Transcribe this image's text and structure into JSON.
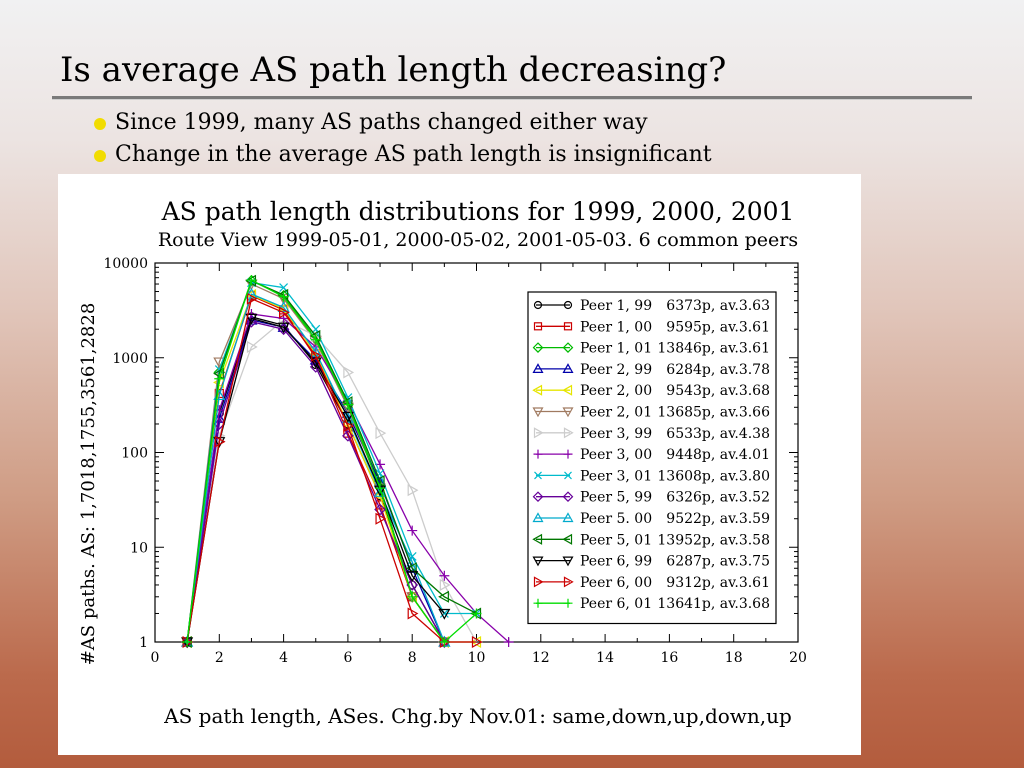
{
  "slide": {
    "title": "Is average AS path length decreasing?",
    "bullets": [
      "Since 1999, many AS paths changed either way",
      "Change in the average AS path length is insignificant"
    ],
    "bullet_color": "#f1dc00"
  },
  "chart_data": {
    "type": "line",
    "title": "AS path length distributions for 1999, 2000, 2001",
    "subtitle": "Route View 1999-05-01, 2000-05-02, 2001-05-03. 6 common peers",
    "xlabel": "AS path length, ASes. Chg.by Nov.01: same,down,up,down,up",
    "ylabel": "#AS paths. AS: 1,7018,1755,3561,2828",
    "xlim": [
      0,
      20
    ],
    "ylim": [
      1,
      10000
    ],
    "yscale": "log",
    "x_ticks": [
      0,
      2,
      4,
      6,
      8,
      10,
      12,
      14,
      16,
      18,
      20
    ],
    "y_ticks": [
      1,
      10,
      100,
      1000,
      10000
    ],
    "y_tick_labels": [
      "1",
      "10",
      "100",
      "1000",
      "10000"
    ],
    "legend_position": "right",
    "series": [
      {
        "name": "Peer 1, 99",
        "info": "6373p, av.3.63",
        "color": "#000000",
        "marker": "circle",
        "x": [
          1,
          2,
          3,
          4,
          5,
          6,
          7,
          8,
          9
        ],
        "y": [
          1,
          260,
          2700,
          2200,
          850,
          200,
          35,
          4,
          1
        ]
      },
      {
        "name": "Peer 1, 00",
        "info": "9595p, av.3.61",
        "color": "#cc0000",
        "marker": "square",
        "x": [
          1,
          2,
          3,
          4,
          5,
          6,
          7,
          8,
          9
        ],
        "y": [
          1,
          420,
          4500,
          3200,
          1000,
          160,
          28,
          3,
          1
        ]
      },
      {
        "name": "Peer 1, 01",
        "info": "13846p, av.3.61",
        "color": "#00bb00",
        "marker": "diamond",
        "x": [
          1,
          2,
          3,
          4,
          5,
          6,
          7,
          8,
          9
        ],
        "y": [
          1,
          700,
          6500,
          4500,
          1600,
          320,
          45,
          3,
          1
        ]
      },
      {
        "name": "Peer 2, 99",
        "info": "6284p, av.3.78",
        "color": "#0000aa",
        "marker": "triangle-up",
        "x": [
          1,
          2,
          3,
          4,
          5,
          6,
          7,
          8,
          9
        ],
        "y": [
          1,
          230,
          2500,
          2100,
          950,
          260,
          48,
          6,
          1
        ]
      },
      {
        "name": "Peer 2, 00",
        "info": "9543p, av.3.68",
        "color": "#e6e600",
        "marker": "triangle-left",
        "x": [
          1,
          2,
          3,
          4,
          5,
          6,
          7,
          8,
          9,
          10
        ],
        "y": [
          1,
          550,
          4600,
          3300,
          1100,
          200,
          35,
          3,
          1,
          1
        ]
      },
      {
        "name": "Peer 2, 01",
        "info": "13685p, av.3.66",
        "color": "#a07a60",
        "marker": "triangle-down",
        "x": [
          1,
          2,
          3,
          4,
          5,
          6,
          7,
          8,
          9
        ],
        "y": [
          1,
          900,
          6000,
          4200,
          1500,
          300,
          42,
          3,
          1
        ]
      },
      {
        "name": "Peer 3, 99",
        "info": "6533p, av.4.38",
        "color": "#cccccc",
        "marker": "triangle-right",
        "x": [
          1,
          2,
          3,
          4,
          5,
          6,
          7,
          8,
          9,
          10
        ],
        "y": [
          1,
          150,
          1300,
          2500,
          1700,
          700,
          160,
          40,
          4,
          1
        ]
      },
      {
        "name": "Peer 3, 00",
        "info": "9448p, av.4.01",
        "color": "#8800aa",
        "marker": "plus",
        "x": [
          1,
          2,
          3,
          4,
          5,
          6,
          7,
          8,
          9,
          10,
          11
        ],
        "y": [
          1,
          280,
          2900,
          2600,
          1300,
          350,
          75,
          15,
          5,
          2,
          1
        ]
      },
      {
        "name": "Peer 3, 01",
        "info": "13608p, av.3.80",
        "color": "#00bbcc",
        "marker": "cross",
        "x": [
          1,
          2,
          3,
          4,
          5,
          6,
          7,
          8,
          9,
          10
        ],
        "y": [
          1,
          750,
          6200,
          5500,
          2000,
          380,
          60,
          8,
          2,
          2
        ]
      },
      {
        "name": "Peer 5, 99",
        "info": "6326p, av.3.52",
        "color": "#660099",
        "marker": "diamond",
        "x": [
          1,
          2,
          3,
          4,
          5,
          6,
          7,
          8,
          9
        ],
        "y": [
          1,
          200,
          2400,
          2000,
          800,
          150,
          25,
          4,
          1
        ]
      },
      {
        "name": "Peer 5. 00",
        "info": "9522p, av.3.59",
        "color": "#00aacc",
        "marker": "triangle-up",
        "x": [
          1,
          2,
          3,
          4,
          5,
          6,
          7,
          8,
          9
        ],
        "y": [
          1,
          400,
          4700,
          3400,
          1150,
          230,
          38,
          7,
          1
        ]
      },
      {
        "name": "Peer 5, 01",
        "info": "13952p, av.3.58",
        "color": "#007700",
        "marker": "triangle-left",
        "x": [
          1,
          2,
          3,
          4,
          5,
          6,
          7,
          8,
          9,
          10
        ],
        "y": [
          1,
          680,
          6500,
          4600,
          1700,
          340,
          50,
          6,
          3,
          2
        ]
      },
      {
        "name": "Peer 6, 99",
        "info": "6287p, av.3.75",
        "color": "#000000",
        "marker": "triangle-down",
        "x": [
          1,
          2,
          3,
          4,
          5,
          6,
          7,
          8,
          9
        ],
        "y": [
          1,
          130,
          2600,
          2100,
          900,
          240,
          40,
          5,
          2
        ]
      },
      {
        "name": "Peer 6, 00",
        "info": "9312p, av.3.61",
        "color": "#cc0000",
        "marker": "triangle-right",
        "x": [
          1,
          2,
          3,
          4,
          5,
          6,
          7,
          8,
          9,
          10
        ],
        "y": [
          1,
          130,
          4200,
          3000,
          1050,
          190,
          20,
          2,
          1,
          1
        ]
      },
      {
        "name": "Peer 6, 01",
        "info": "13641p, av.3.68",
        "color": "#00dd00",
        "marker": "plus",
        "x": [
          1,
          2,
          3,
          4,
          5,
          6,
          7,
          8,
          9,
          10
        ],
        "y": [
          1,
          600,
          6600,
          4400,
          1550,
          320,
          42,
          3,
          1,
          2
        ]
      }
    ]
  }
}
